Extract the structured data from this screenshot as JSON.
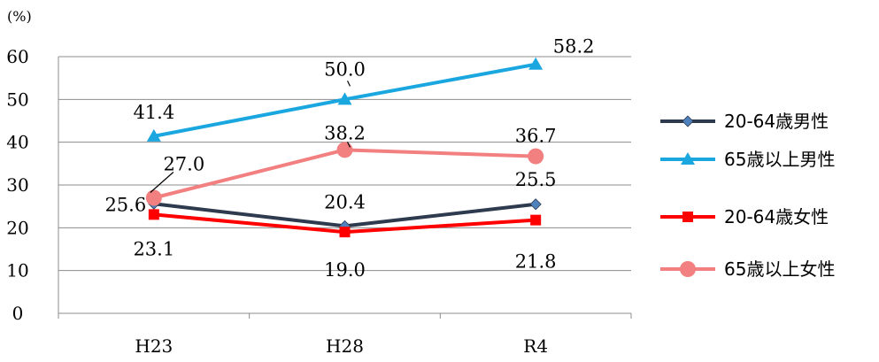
{
  "chart_data": {
    "type": "line",
    "unit_label": "(%)",
    "categories": [
      "H23",
      "H28",
      "R4"
    ],
    "ylim": [
      0,
      60
    ],
    "yticks": [
      "0",
      "10",
      "20",
      "30",
      "40",
      "50",
      "60"
    ],
    "grid": true,
    "legend_position": "right",
    "series": [
      {
        "name": "20-64歳男性",
        "values": [
          25.6,
          20.4,
          25.5
        ],
        "labels": [
          "25.6",
          "20.4",
          "25.5"
        ],
        "color": "#2E3A4E",
        "marker": "diamond",
        "marker_color": "#4F81BD"
      },
      {
        "name": "65歳以上男性",
        "values": [
          41.4,
          50.0,
          58.2
        ],
        "labels": [
          "41.4",
          "50.0",
          "58.2"
        ],
        "color": "#1AA7E0",
        "marker": "triangle",
        "marker_color": "#1AA7E0"
      },
      {
        "name": "20-64歳女性",
        "values": [
          23.1,
          19.0,
          21.8
        ],
        "labels": [
          "23.1",
          "19.0",
          "21.8"
        ],
        "color": "#FF0000",
        "marker": "square",
        "marker_color": "#FF0000"
      },
      {
        "name": "65歳以上女性",
        "values": [
          27.0,
          38.2,
          36.7
        ],
        "labels": [
          "27.0",
          "38.2",
          "36.7"
        ],
        "color": "#F28080",
        "marker": "circle",
        "marker_color": "#F28080"
      }
    ]
  }
}
